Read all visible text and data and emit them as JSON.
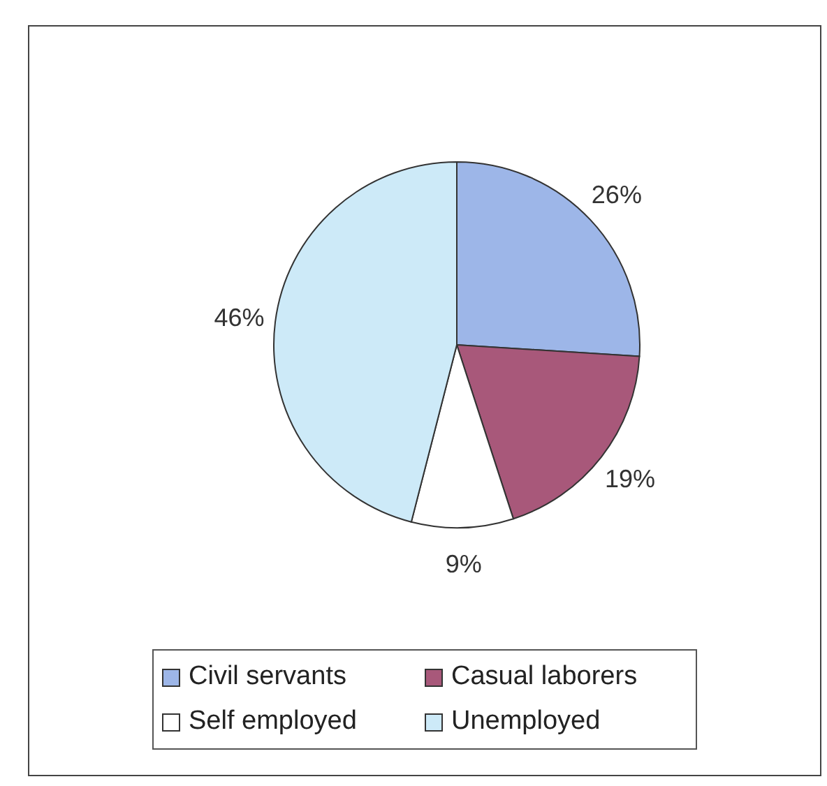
{
  "chart_data": {
    "type": "pie",
    "categories": [
      "Civil servants",
      "Casual laborers",
      "Self employed",
      "Unemployed"
    ],
    "values": [
      26,
      19,
      9,
      46
    ],
    "colors": [
      "#9db6e8",
      "#a8587a",
      "#ffffff",
      "#cdeaf8"
    ],
    "value_labels": [
      "26%",
      "19%",
      "9%",
      "46%"
    ],
    "legend": "bottom"
  }
}
